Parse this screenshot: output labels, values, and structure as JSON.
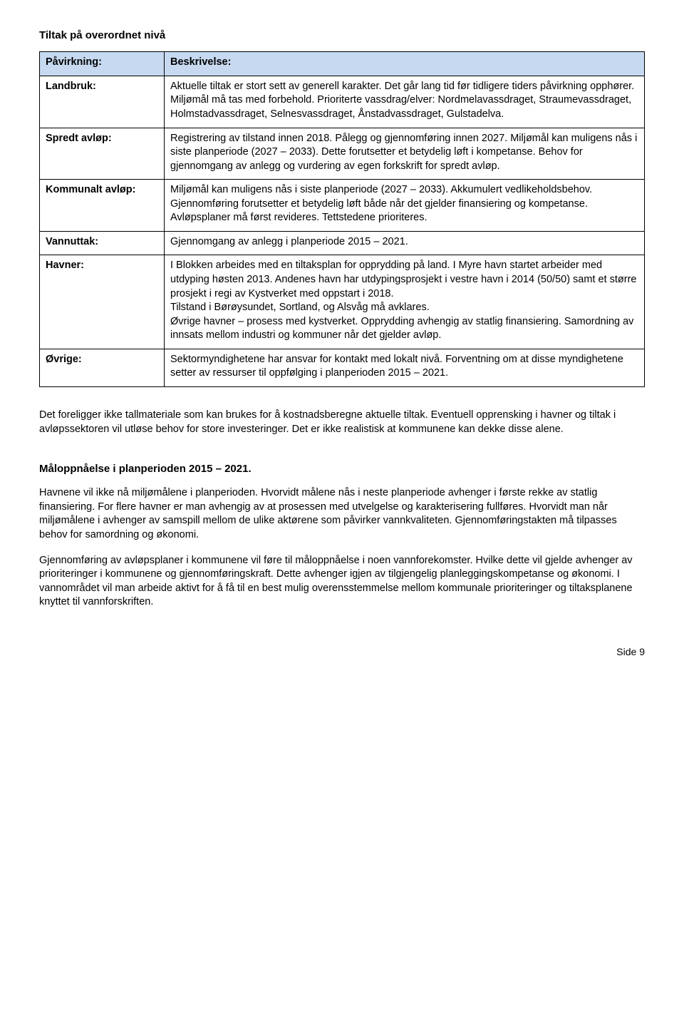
{
  "title": "Tiltak på overordnet nivå",
  "table": {
    "header_left": "Påvirkning:",
    "header_right": "Beskrivelse:",
    "rows": [
      {
        "label": "Landbruk:",
        "text": "Aktuelle tiltak er stort sett av generell karakter. Det går lang tid før tidligere tiders påvirkning opphører. Miljømål må tas med forbehold. Prioriterte vassdrag/elver: Nordmelavassdraget, Straumevassdraget, Holmstadvassdraget, Selnesvassdraget, Ånstadvassdraget, Gulstadelva."
      },
      {
        "label": "Spredt avløp:",
        "text": "Registrering av tilstand innen 2018. Pålegg og gjennomføring innen 2027. Miljømål kan muligens nås i siste planperiode (2027 – 2033). Dette forutsetter et betydelig løft i kompetanse.  Behov  for gjennomgang av anlegg og vurdering av egen forkskrift for spredt avløp."
      },
      {
        "label": "Kommunalt avløp:",
        "text": "Miljømål kan muligens nås i siste planperiode (2027 – 2033). Akkumulert vedlikeholdsbehov. Gjennomføring forutsetter et betydelig løft både når det  gjelder finansiering og kompetanse. Avløpsplaner må først revideres. Tettstedene prioriteres."
      },
      {
        "label": "Vannuttak:",
        "text": "Gjennomgang av anlegg i planperiode 2015 – 2021."
      },
      {
        "label": "Havner:",
        "text": "I Blokken arbeides med en tiltaksplan for opprydding på land. I Myre havn startet arbeider med utdyping høsten 2013. Andenes havn har utdypingsprosjekt i vestre havn i 2014 (50/50) samt et større prosjekt i regi av Kystverket med oppstart i 2018.\nTilstand i Børøysundet,  Sortland, og Alsvåg må avklares.\nØvrige  havner – prosess med kystverket. Opprydding avhengig av statlig finansiering.  Samordning av innsats mellom industri og kommuner når det gjelder avløp."
      },
      {
        "label": "Øvrige:",
        "text": "Sektormyndighetene har ansvar for kontakt med lokalt nivå.  Forventning om at disse myndighetene setter av ressurser til oppfølging i planperioden 2015 – 2021."
      }
    ]
  },
  "para1": "Det foreligger ikke tallmateriale som kan brukes for å kostnadsberegne aktuelle tiltak.  Eventuell opprensking i havner og tiltak i avløpssektoren vil utløse behov  for store investeringer.  Det er ikke realistisk at  kommunene kan dekke disse alene.",
  "subheading": "Måloppnåelse i planperioden 2015 – 2021.",
  "para2": "Havnene vil ikke nå miljømålene i planperioden. Hvorvidt målene nås i neste planperiode avhenger i første rekke av statlig finansiering. For flere havner er man avhengig av at prosessen med utvelgelse og karakterisering fullføres.  Hvorvidt man når miljømålene i avhenger av samspill mellom de ulike aktørene som påvirker vannkvaliteten.  Gjennomføringstakten må tilpasses behov for samordning og økonomi.",
  "para3": "Gjennomføring av avløpsplaner i kommunene vil føre til måloppnåelse i noen vannforekomster. Hvilke dette vil gjelde avhenger av prioriteringer i kommunene og gjennomføringskraft. Dette avhenger igjen av tilgjengelig  planleggingskompetanse og økonomi.  I vannområdet vil man arbeide aktivt for å få til en best mulig overensstemmelse mellom kommunale prioriteringer og tiltaksplanene knyttet til vannforskriften.",
  "footer": "Side 9"
}
